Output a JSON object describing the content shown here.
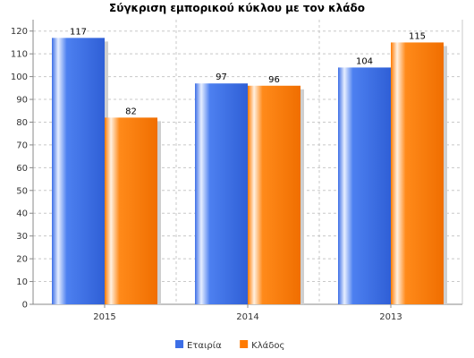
{
  "chart_data": {
    "type": "bar",
    "title": "Σύγκριση εμπορικού κύκλου με τον κλάδο",
    "categories": [
      "2015",
      "2014",
      "2013"
    ],
    "series": [
      {
        "name": "Εταιρία",
        "values": [
          117,
          97,
          104
        ],
        "color": "#3c6ee6"
      },
      {
        "name": "Κλάδος",
        "values": [
          82,
          96,
          115
        ],
        "color": "#ff7a00"
      }
    ],
    "ylim": [
      0,
      125
    ],
    "yticks": [
      0,
      10,
      20,
      30,
      40,
      50,
      60,
      70,
      80,
      90,
      100,
      110,
      120
    ],
    "grid": true,
    "legend_position": "bottom-center"
  }
}
